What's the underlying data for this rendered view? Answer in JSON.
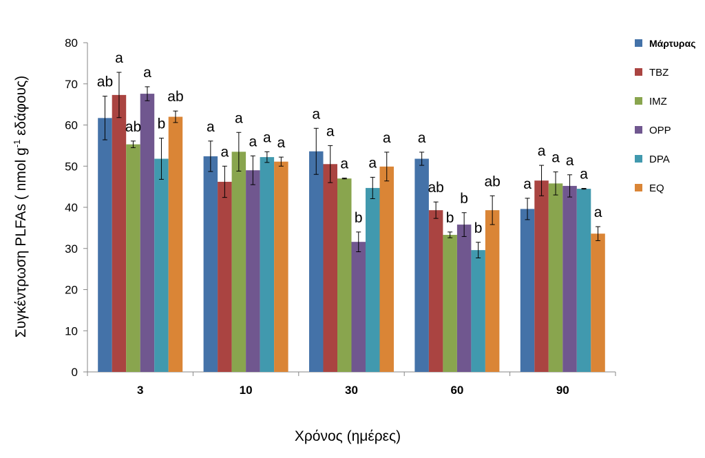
{
  "chart_data": {
    "type": "bar",
    "xlabel": "Χρόνος (ημέρες)",
    "ylabel_main": "Συγκέντρωση PLFAs ( nmol g",
    "ylabel_sup": "-1",
    "ylabel_tail": " εδάφους)",
    "ylim": [
      0,
      80
    ],
    "yticks": [
      0,
      10,
      20,
      30,
      40,
      50,
      60,
      70,
      80
    ],
    "categories": [
      "3",
      "10",
      "30",
      "60",
      "90"
    ],
    "legend_position": "right",
    "series": [
      {
        "name": "Μάρτυρας",
        "color": "#4472A8",
        "values": [
          61.7,
          52.4,
          53.6,
          51.8,
          39.6
        ],
        "errors": [
          5.3,
          3.7,
          5.6,
          1.6,
          2.6
        ],
        "letters": [
          "ab",
          "a",
          "a",
          "a",
          "a"
        ]
      },
      {
        "name": "TBZ",
        "color": "#AA4441",
        "values": [
          67.3,
          46.2,
          50.5,
          39.3,
          46.5
        ],
        "errors": [
          5.5,
          3.8,
          4.5,
          2.0,
          3.7
        ],
        "letters": [
          "a",
          "a",
          "a",
          "ab",
          "a"
        ]
      },
      {
        "name": "IMZ",
        "color": "#89A54E",
        "values": [
          55.3,
          53.5,
          47.0,
          33.3,
          45.8
        ],
        "errors": [
          0.8,
          4.7,
          0.1,
          0.7,
          2.8
        ],
        "letters": [
          "ab",
          "a",
          "a",
          "b",
          "a"
        ]
      },
      {
        "name": "OPP",
        "color": "#70578F",
        "values": [
          67.6,
          49.0,
          31.6,
          35.8,
          45.2
        ],
        "errors": [
          1.7,
          3.5,
          2.4,
          2.9,
          2.7
        ],
        "letters": [
          "a",
          "a",
          "b",
          "b",
          "a"
        ]
      },
      {
        "name": "DPA",
        "color": "#4199AE",
        "values": [
          51.8,
          52.2,
          44.7,
          29.6,
          44.5
        ],
        "errors": [
          5.0,
          1.3,
          2.6,
          1.9,
          0.1
        ],
        "letters": [
          "b",
          "a",
          "a",
          "b",
          "a"
        ]
      },
      {
        "name": "EQ",
        "color": "#DA8536",
        "values": [
          62.0,
          51.1,
          49.9,
          39.3,
          33.6
        ],
        "errors": [
          1.4,
          1.1,
          3.5,
          3.5,
          1.7
        ],
        "letters": [
          "ab",
          "a",
          "a",
          "ab",
          "a"
        ]
      }
    ]
  }
}
